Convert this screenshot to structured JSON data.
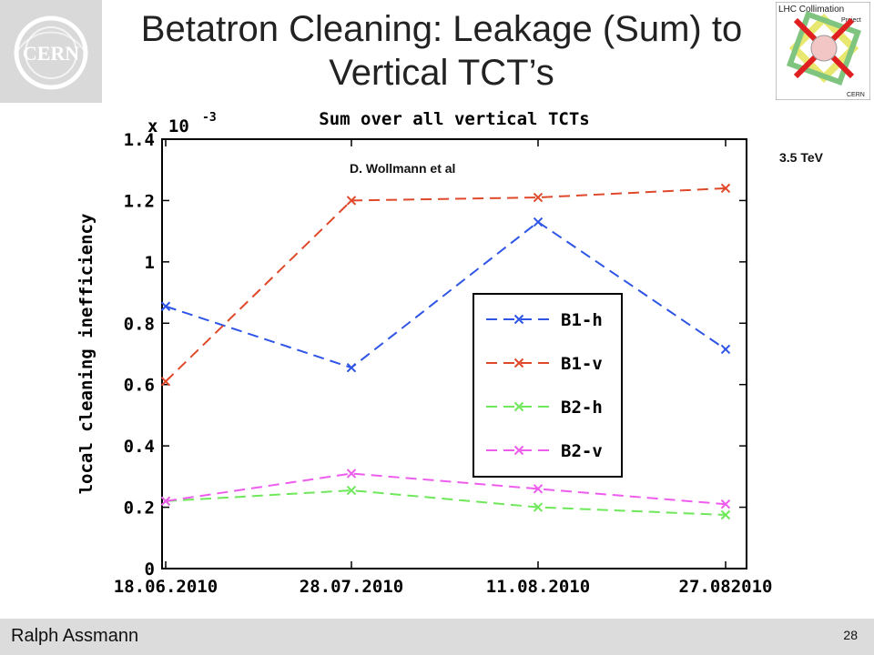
{
  "slide": {
    "title_line1": "Betatron Cleaning: Leakage (Sum) to",
    "title_line2": "Vertical TCT’s",
    "author": "Ralph Assmann",
    "page": "28",
    "energy": "3.5 TeV",
    "credit": "D. Wollmann et al",
    "logo_left": "CERN",
    "logo_right_title": "LHC Collimation",
    "logo_right_sub": "Project",
    "logo_right_cern": "CERN"
  },
  "chart_data": {
    "type": "line",
    "title": "Sum over all vertical TCTs",
    "ylabel": "local cleaning inefficiency",
    "y_multiplier": "x 10",
    "y_multiplier_exp": "-3",
    "categories": [
      "18.06.2010",
      "28.07.2010",
      "11.08.2010",
      "27.082010"
    ],
    "ylim": [
      0,
      1.4
    ],
    "yticks": [
      "0",
      "0.2",
      "0.4",
      "0.6",
      "0.8",
      "1",
      "1.2",
      "1.4"
    ],
    "grid": false,
    "legend_position": "center-right",
    "series": [
      {
        "name": "B1-h",
        "color": "#2e55e6",
        "values": [
          0.855,
          0.655,
          1.13,
          0.715
        ]
      },
      {
        "name": "B1-v",
        "color": "#e0482a",
        "values": [
          0.61,
          1.2,
          1.21,
          1.24
        ]
      },
      {
        "name": "B2-h",
        "color": "#6ee85a",
        "values": [
          0.22,
          0.255,
          0.2,
          0.175
        ]
      },
      {
        "name": "B2-v",
        "color": "#ee5cee",
        "values": [
          0.22,
          0.31,
          0.26,
          0.21
        ]
      }
    ]
  }
}
